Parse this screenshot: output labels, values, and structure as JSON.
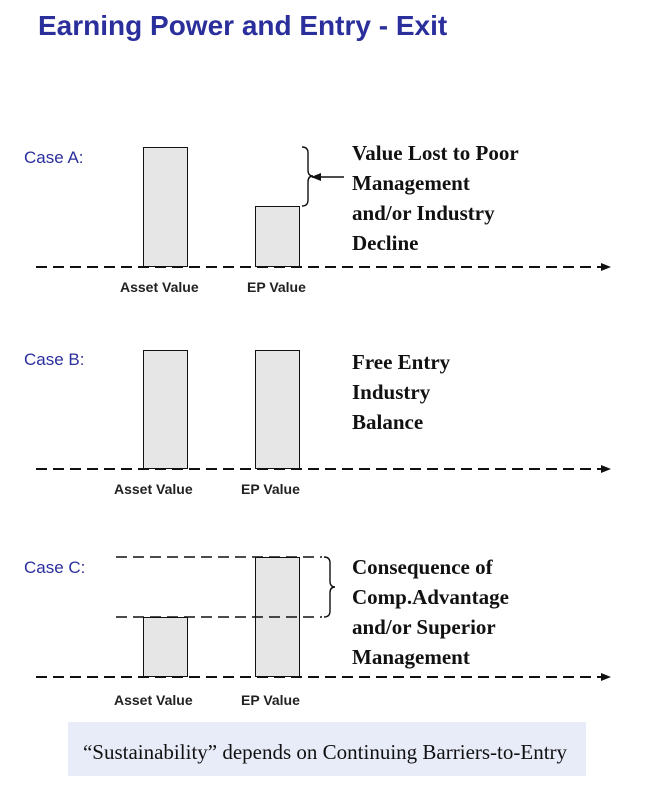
{
  "title": "Earning Power and Entry - Exit",
  "cases": [
    {
      "label": "Case A:",
      "axis_labels": [
        "Asset Value",
        "EP Value"
      ],
      "annotation": [
        "Value Lost to Poor",
        "Management",
        "and/or Industry",
        "Decline"
      ]
    },
    {
      "label": "Case B:",
      "axis_labels": [
        "Asset Value",
        "EP Value"
      ],
      "annotation": [
        "Free Entry",
        "Industry",
        "Balance"
      ]
    },
    {
      "label": "Case C:",
      "axis_labels": [
        "Asset Value",
        "EP Value"
      ],
      "annotation": [
        "Consequence of",
        "Comp.Advantage",
        "and/or Superior",
        "Management"
      ]
    }
  ],
  "footer": "“Sustainability” depends on Continuing Barriers-to-Entry",
  "colors": {
    "title": "#2b2f9c",
    "bar_fill": "#e6e6e6",
    "footer_bg": "#e8ecf8"
  }
}
